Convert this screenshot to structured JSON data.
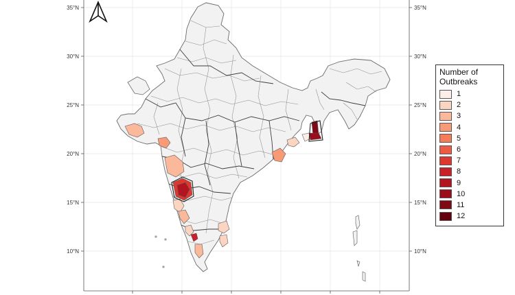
{
  "map": {
    "north_arrow": "north-arrow",
    "latitude_labels": [
      "35°N",
      "30°N",
      "25°N",
      "20°N",
      "15°N",
      "10°N"
    ],
    "background_color": "#ffffff",
    "land_color": "#f2f2f2",
    "border_color": "#7a7a7a",
    "grid_color": "#e4e4e4"
  },
  "legend": {
    "title_line1": "Number of",
    "title_line2": "Outbreaks",
    "entries": [
      {
        "label": "1",
        "color": "#fdeee8"
      },
      {
        "label": "2",
        "color": "#fcd4c2"
      },
      {
        "label": "3",
        "color": "#fbb89b"
      },
      {
        "label": "4",
        "color": "#f99a76"
      },
      {
        "label": "5",
        "color": "#f67c59"
      },
      {
        "label": "6",
        "color": "#ef5a42"
      },
      {
        "label": "7",
        "color": "#de3730"
      },
      {
        "label": "8",
        "color": "#c9202a"
      },
      {
        "label": "9",
        "color": "#b31520"
      },
      {
        "label": "10",
        "color": "#9b0d1a"
      },
      {
        "label": "11",
        "color": "#800915"
      },
      {
        "label": "12",
        "color": "#67000d"
      }
    ]
  },
  "chart_data": {
    "type": "choropleth",
    "title": "",
    "legend_title": "Number of Outbreaks",
    "legend_placement": "right",
    "lat_ticks": [
      35,
      30,
      25,
      20,
      15,
      10
    ],
    "color_scale": [
      "#fdeee8",
      "#fcd4c2",
      "#fbb89b",
      "#f99a76",
      "#f67c59",
      "#ef5a42",
      "#de3730",
      "#c9202a",
      "#b31520",
      "#9b0d1a",
      "#800915",
      "#67000d"
    ],
    "grid": true
  }
}
